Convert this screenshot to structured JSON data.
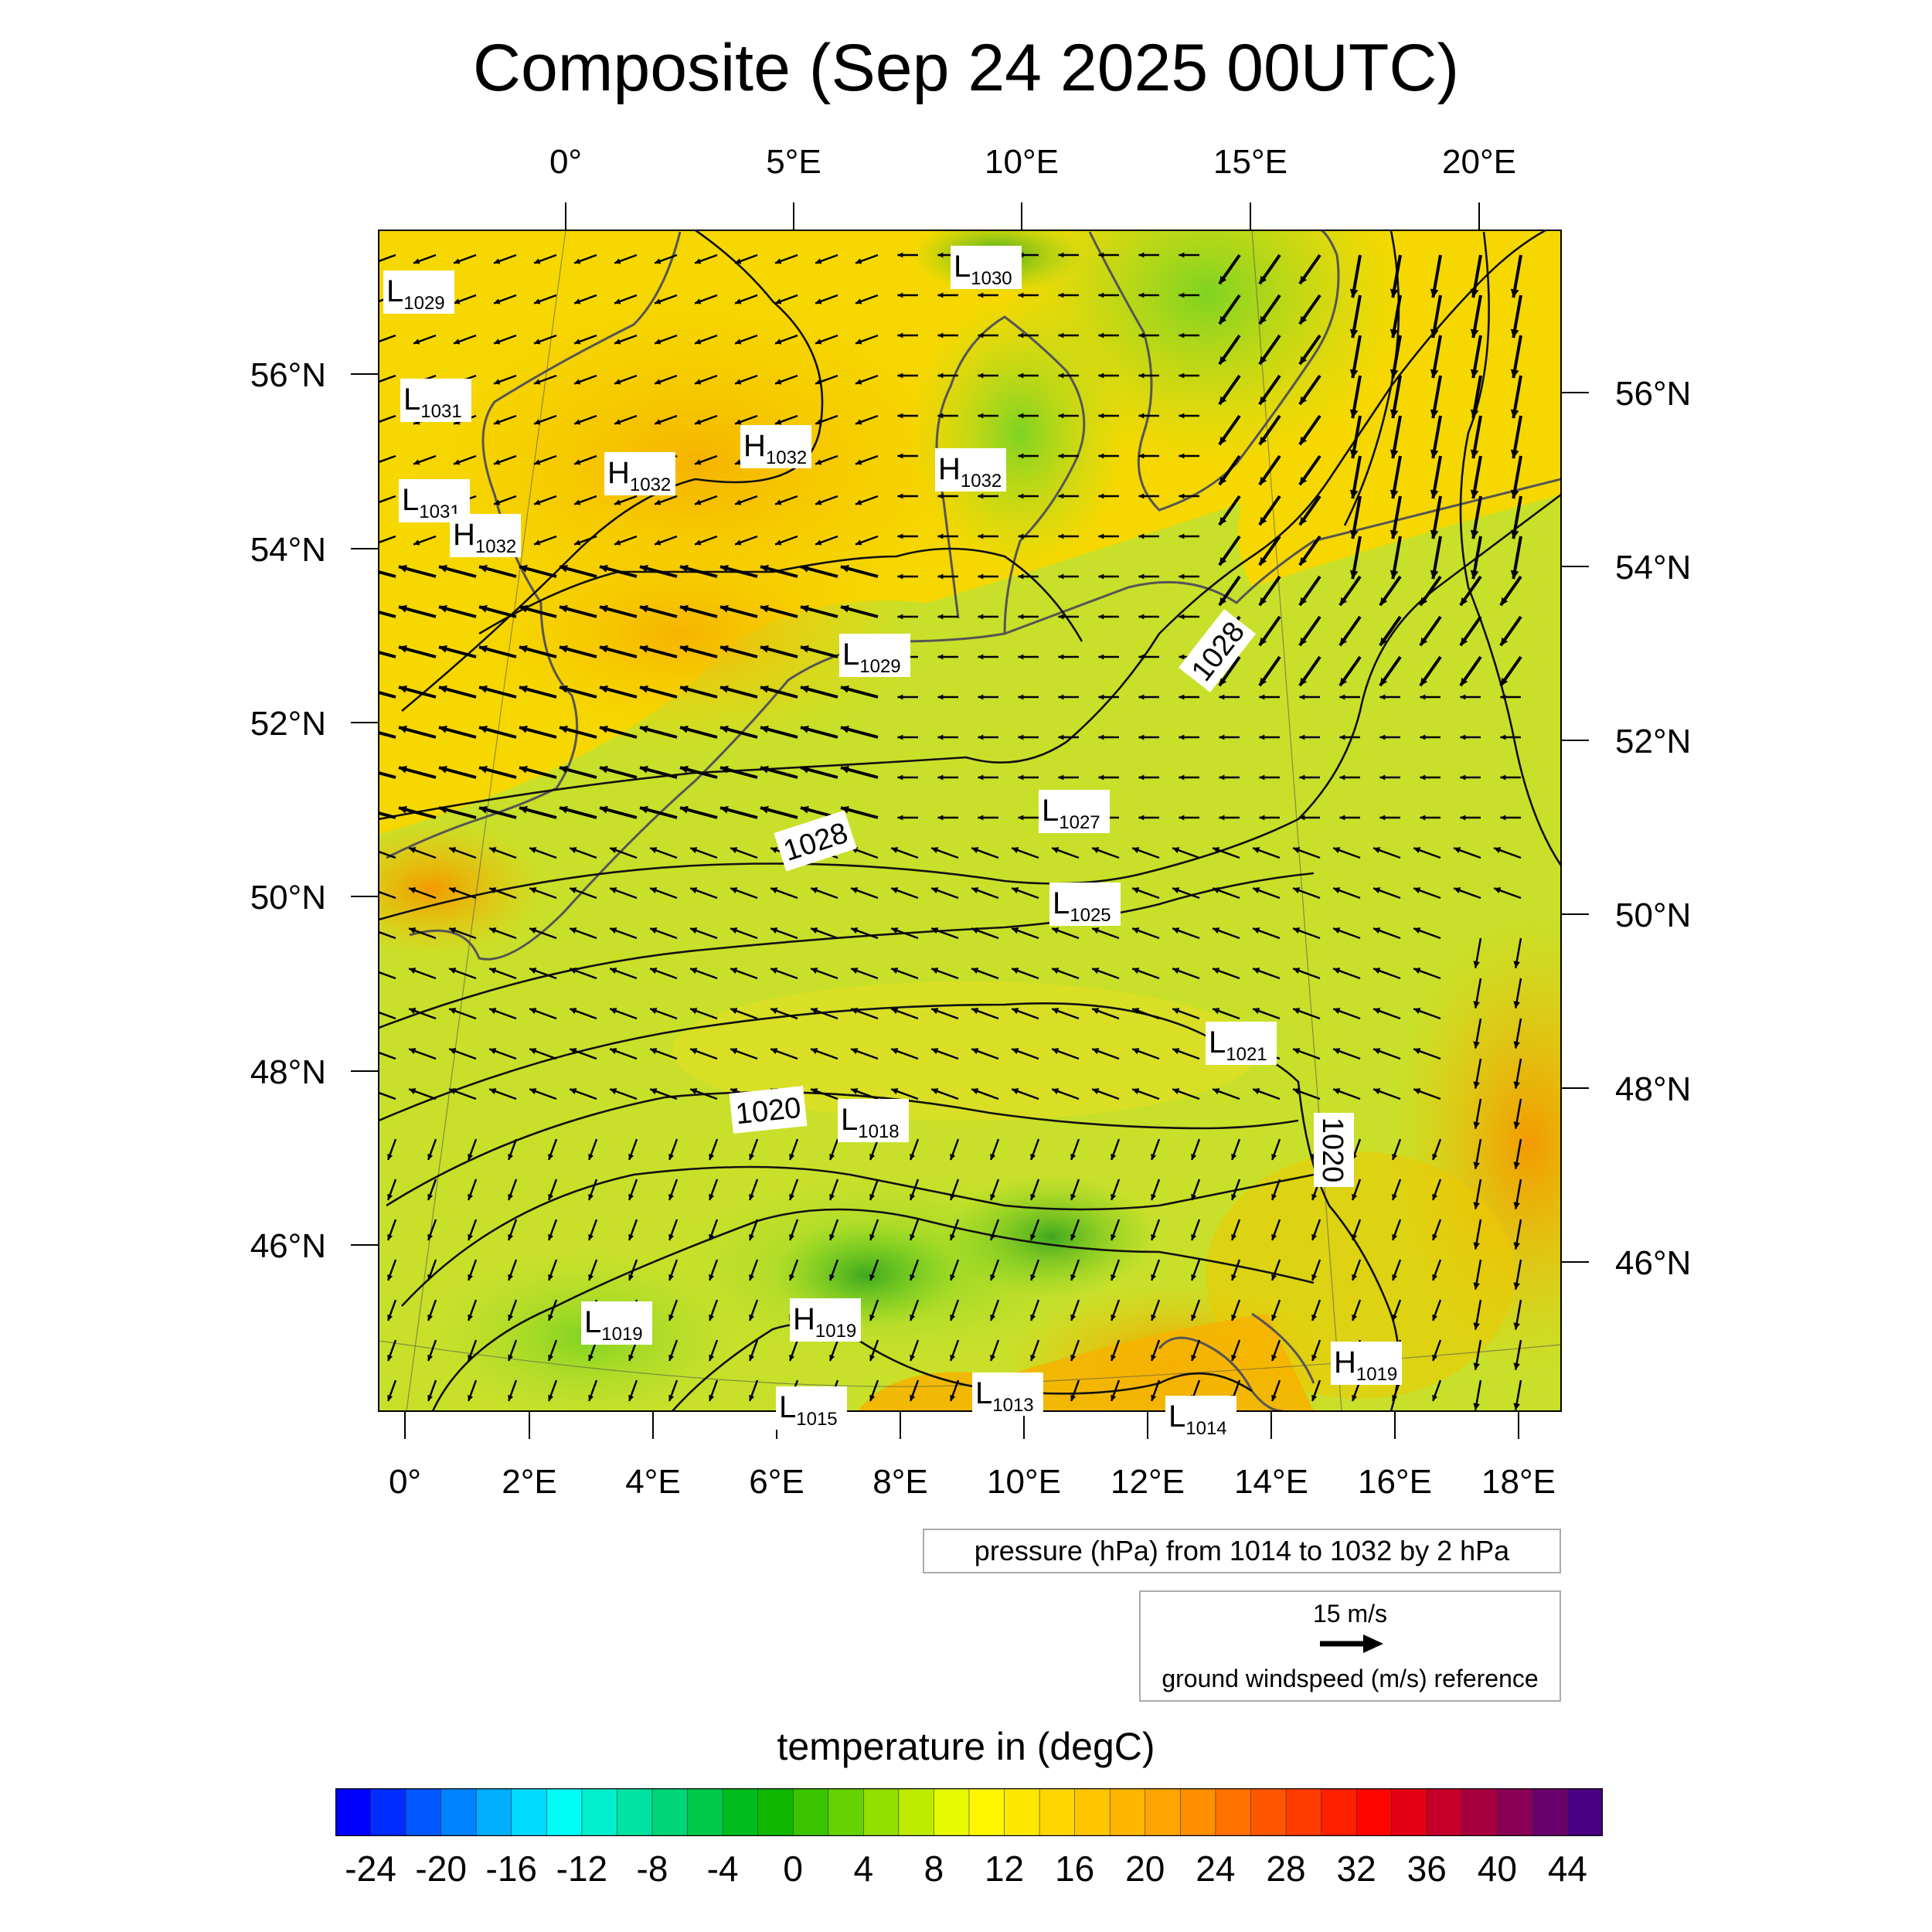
{
  "title": "Composite (Sep 24 2025 00UTC)",
  "top_lon_labels": [
    "0°",
    "5°E",
    "10°E",
    "15°E",
    "20°E"
  ],
  "bottom_lon_labels": [
    "0°",
    "2°E",
    "4°E",
    "6°E",
    "8°E",
    "10°E",
    "12°E",
    "14°E",
    "16°E",
    "18°E"
  ],
  "left_lat_labels": [
    "56°N",
    "54°N",
    "52°N",
    "50°N",
    "48°N",
    "46°N"
  ],
  "right_lat_labels": [
    "56°N",
    "54°N",
    "52°N",
    "50°N",
    "48°N",
    "46°N"
  ],
  "pressure_centers": [
    {
      "type": "L",
      "value": "1029"
    },
    {
      "type": "L",
      "value": "1031"
    },
    {
      "type": "L",
      "value": "1031"
    },
    {
      "type": "H",
      "value": "1032"
    },
    {
      "type": "H",
      "value": "1032"
    },
    {
      "type": "H",
      "value": "1032"
    },
    {
      "type": "H",
      "value": "1032"
    },
    {
      "type": "L",
      "value": "1030"
    },
    {
      "type": "L",
      "value": "1029"
    },
    {
      "type": "L",
      "value": "1027"
    },
    {
      "type": "L",
      "value": "1025"
    },
    {
      "type": "L",
      "value": "1021"
    },
    {
      "type": "L",
      "value": "1018"
    },
    {
      "type": "L",
      "value": "1019"
    },
    {
      "type": "H",
      "value": "1019"
    },
    {
      "type": "H",
      "value": "1019"
    },
    {
      "type": "L",
      "value": "1013"
    },
    {
      "type": "L",
      "value": "1015"
    },
    {
      "type": "L",
      "value": "1014"
    }
  ],
  "contour_labels": [
    "1028",
    "1028",
    "1020",
    "1020"
  ],
  "pressure_legend": "pressure (hPa) from 1014 to 1032 by 2 hPa",
  "wind_legend": {
    "speed": "15 m/s",
    "text": "ground windspeed (m/s) reference"
  },
  "colorbar": {
    "title": "temperature in (degC)",
    "min": -26,
    "max": 46,
    "step": 2,
    "tick_labels": [
      "-24",
      "-20",
      "-16",
      "-12",
      "-8",
      "-4",
      "0",
      "4",
      "8",
      "12",
      "16",
      "20",
      "24",
      "28",
      "32",
      "36",
      "40",
      "44"
    ],
    "colors": [
      "#0000ff",
      "#00ffff",
      "#00b400",
      "#ffff00",
      "#ffa000",
      "#ff0000",
      "#4b0082"
    ]
  }
}
